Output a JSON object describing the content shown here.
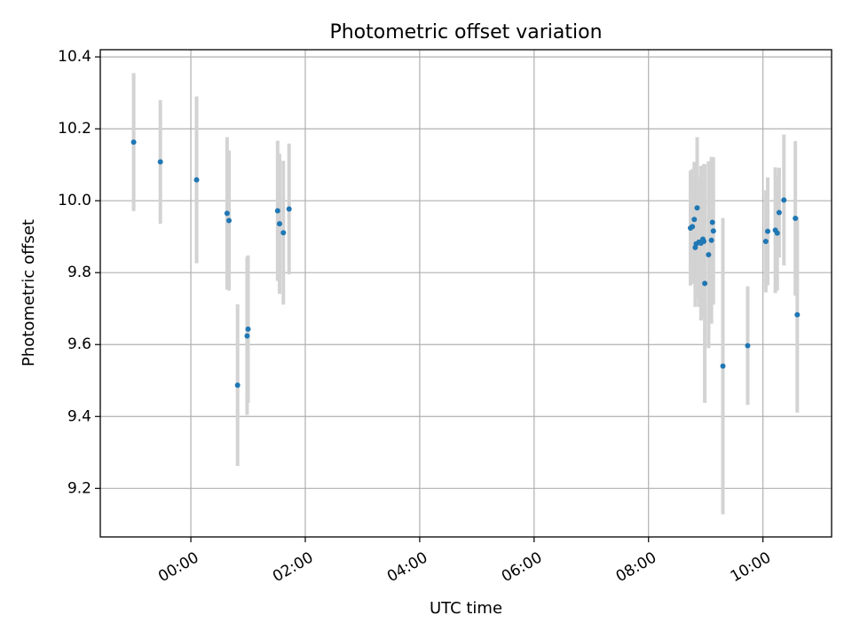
{
  "chart_data": {
    "type": "scatter",
    "title": "Photometric offset variation",
    "xlabel": "UTC time",
    "ylabel": "Photometric offset",
    "x_unit": "UTC time (HH:MM)",
    "xlim": [
      "-01:35",
      "11:12"
    ],
    "ylim": [
      9.065,
      10.42
    ],
    "xticks": [
      "00:00",
      "02:00",
      "04:00",
      "06:00",
      "08:00",
      "10:00"
    ],
    "yticks": [
      "9.2",
      "9.4",
      "9.6",
      "9.8",
      "10.0",
      "10.2",
      "10.4"
    ],
    "grid": true,
    "point_color": "#1f77b4",
    "errorbar_color": "#d3d3d3",
    "points": [
      {
        "x": "-01:00",
        "y": 10.163,
        "err": 0.192
      },
      {
        "x": "-00:32",
        "y": 10.108,
        "err": 0.172
      },
      {
        "x": "00:06",
        "y": 10.058,
        "err": 0.232
      },
      {
        "x": "00:38",
        "y": 9.965,
        "err": 0.212
      },
      {
        "x": "00:40",
        "y": 9.945,
        "err": 0.195
      },
      {
        "x": "00:49",
        "y": 9.487,
        "err": 0.225
      },
      {
        "x": "00:59",
        "y": 9.624,
        "err": 0.22
      },
      {
        "x": "01:00",
        "y": 9.643,
        "err": 0.205
      },
      {
        "x": "01:31",
        "y": 9.972,
        "err": 0.195
      },
      {
        "x": "01:33",
        "y": 9.936,
        "err": 0.195
      },
      {
        "x": "01:37",
        "y": 9.911,
        "err": 0.2
      },
      {
        "x": "01:43",
        "y": 9.977,
        "err": 0.182
      },
      {
        "x": "08:44",
        "y": 9.924,
        "err": 0.16
      },
      {
        "x": "08:46",
        "y": 9.928,
        "err": 0.16
      },
      {
        "x": "08:48",
        "y": 9.948,
        "err": 0.16
      },
      {
        "x": "08:49",
        "y": 9.87,
        "err": 0.165
      },
      {
        "x": "08:50",
        "y": 9.88,
        "err": 0.15
      },
      {
        "x": "08:51",
        "y": 9.98,
        "err": 0.197
      },
      {
        "x": "08:53",
        "y": 9.885,
        "err": 0.18
      },
      {
        "x": "08:55",
        "y": 9.882,
        "err": 0.215
      },
      {
        "x": "08:57",
        "y": 9.893,
        "err": 0.17
      },
      {
        "x": "08:58",
        "y": 9.887,
        "err": 0.215
      },
      {
        "x": "08:59",
        "y": 9.77,
        "err": 0.332
      },
      {
        "x": "09:03",
        "y": 9.85,
        "err": 0.26
      },
      {
        "x": "09:06",
        "y": 9.89,
        "err": 0.232
      },
      {
        "x": "09:07",
        "y": 9.94,
        "err": 0.18
      },
      {
        "x": "09:08",
        "y": 9.916,
        "err": 0.205
      },
      {
        "x": "09:18",
        "y": 9.54,
        "err": 0.412
      },
      {
        "x": "09:44",
        "y": 9.597,
        "err": 0.165
      },
      {
        "x": "10:03",
        "y": 9.887,
        "err": 0.142
      },
      {
        "x": "10:05",
        "y": 9.915,
        "err": 0.15
      },
      {
        "x": "10:13",
        "y": 9.918,
        "err": 0.175
      },
      {
        "x": "10:15",
        "y": 9.91,
        "err": 0.16
      },
      {
        "x": "10:17",
        "y": 9.967,
        "err": 0.125
      },
      {
        "x": "10:22",
        "y": 10.002,
        "err": 0.182
      },
      {
        "x": "10:34",
        "y": 9.951,
        "err": 0.215
      },
      {
        "x": "10:36",
        "y": 9.683,
        "err": 0.272
      }
    ]
  }
}
